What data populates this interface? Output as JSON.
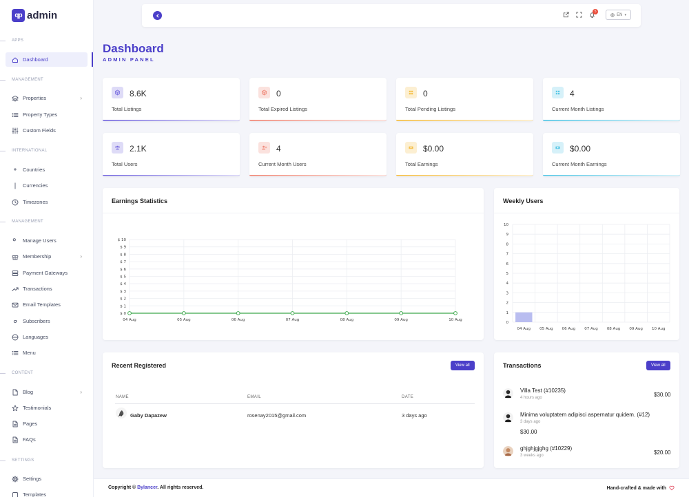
{
  "brand": {
    "logo_mark": "qp",
    "name": "admin"
  },
  "sidebar": {
    "sections": [
      {
        "label": "APPS",
        "items": [
          {
            "label": "Dashboard",
            "icon": "home-icon",
            "active": true
          }
        ]
      },
      {
        "label": "MANAGEMENT",
        "items": [
          {
            "label": "Properties",
            "icon": "layers-icon",
            "chevron": true
          },
          {
            "label": "Property Types",
            "icon": "list-icon"
          },
          {
            "label": "Custom Fields",
            "icon": "sliders-icon"
          }
        ]
      },
      {
        "label": "INTERNATIONAL",
        "items": [
          {
            "label": "Countries",
            "icon": "map-pin-icon"
          },
          {
            "label": "Currencies",
            "icon": "dollar-icon"
          },
          {
            "label": "Timezones",
            "icon": "clock-icon"
          }
        ]
      },
      {
        "label": "MANAGEMENT",
        "items": [
          {
            "label": "Manage Users",
            "icon": "users-icon"
          },
          {
            "label": "Membership",
            "icon": "gift-icon",
            "chevron": true
          },
          {
            "label": "Payment Gateways",
            "icon": "server-icon"
          },
          {
            "label": "Transactions",
            "icon": "trending-up-icon"
          },
          {
            "label": "Email Templates",
            "icon": "mail-icon"
          },
          {
            "label": "Subscribers",
            "icon": "at-sign-icon"
          },
          {
            "label": "Languages",
            "icon": "globe-icon"
          },
          {
            "label": "Menu",
            "icon": "menu-icon"
          }
        ]
      },
      {
        "label": "CONTENT",
        "items": [
          {
            "label": "Blog",
            "icon": "file-icon",
            "chevron": true
          },
          {
            "label": "Testimonials",
            "icon": "star-icon"
          },
          {
            "label": "Pages",
            "icon": "file-text-icon"
          },
          {
            "label": "FAQs",
            "icon": "file-text-icon"
          }
        ]
      },
      {
        "label": "SETTINGS",
        "items": [
          {
            "label": "Settings",
            "icon": "gear-icon"
          },
          {
            "label": "Templates",
            "icon": "square-icon"
          }
        ]
      }
    ]
  },
  "topbar": {
    "lang": "EN",
    "notification_count": "5"
  },
  "page": {
    "title": "Dashboard",
    "subtitle": "ADMIN PANEL"
  },
  "stats": [
    {
      "value": "8.6K",
      "label": "Total Listings",
      "color": "#7b6fe0"
    },
    {
      "value": "0",
      "label": "Total Expired Listings",
      "color": "#f08a7a"
    },
    {
      "value": "0",
      "label": "Total Pending Listings",
      "color": "#f5c04a"
    },
    {
      "value": "4",
      "label": "Current Month Listings",
      "color": "#5bc8e6"
    },
    {
      "value": "2.1K",
      "label": "Total Users",
      "color": "#7b6fe0"
    },
    {
      "value": "4",
      "label": "Current Month Users",
      "color": "#f08a7a"
    },
    {
      "value": "$0.00",
      "label": "Total Earnings",
      "color": "#f5c04a"
    },
    {
      "value": "$0.00",
      "label": "Current Month Earnings",
      "color": "#5bc8e6"
    }
  ],
  "panels": {
    "earnings_title": "Earnings Statistics",
    "weekly_title": "Weekly Users",
    "recent_title": "Recent Registered",
    "transactions_title": "Transactions",
    "view_all": "View all"
  },
  "chart_data": [
    {
      "type": "line",
      "title": "Earnings Statistics",
      "categories": [
        "04 Aug",
        "05 Aug",
        "06 Aug",
        "07 Aug",
        "08 Aug",
        "09 Aug",
        "10 Aug"
      ],
      "values": [
        0,
        0,
        0,
        0,
        0,
        0,
        0
      ],
      "ylim": [
        0,
        10
      ],
      "yticks": [
        "$ 0",
        "$ 1",
        "$ 2",
        "$ 3",
        "$ 4",
        "$ 5",
        "$ 6",
        "$ 7",
        "$ 8",
        "$ 9",
        "$ 10"
      ],
      "color": "#3aa84a",
      "grid": true
    },
    {
      "type": "bar",
      "title": "Weekly Users",
      "categories": [
        "04 Aug",
        "05 Aug",
        "06 Aug",
        "07 Aug",
        "08 Aug",
        "09 Aug",
        "10 Aug"
      ],
      "values": [
        1,
        0,
        0,
        0,
        0,
        0,
        0
      ],
      "ylim": [
        0,
        10
      ],
      "yticks": [
        "0",
        "1",
        "2",
        "3",
        "4",
        "5",
        "6",
        "7",
        "8",
        "9",
        "10"
      ],
      "color": "#b9bdf0",
      "grid": true
    }
  ],
  "recent": {
    "headers": [
      "NAME",
      "EMAIL",
      "DATE"
    ],
    "rows": [
      {
        "name": "Gaby Dapazew",
        "email": "rosenay2015@gmail.com",
        "date": "3 days ago"
      }
    ]
  },
  "transactions": [
    {
      "title": "Villa Test (#10235)",
      "time": "4 hours ago",
      "amount": "$30.00"
    },
    {
      "title": "Minima voluptatem adipisci aspernatur quidem. (#12)",
      "time": "3 days ago",
      "amount": "$30.00"
    },
    {
      "title": "ghjghjgjghg (#10229)",
      "time": "3 weeks ago",
      "amount": "$20.00"
    }
  ],
  "footer": {
    "prefix": "Copyright ©",
    "brand": "Bylancer",
    "suffix": ". All rights reserved.",
    "right": "Hand-crafted & made with"
  }
}
